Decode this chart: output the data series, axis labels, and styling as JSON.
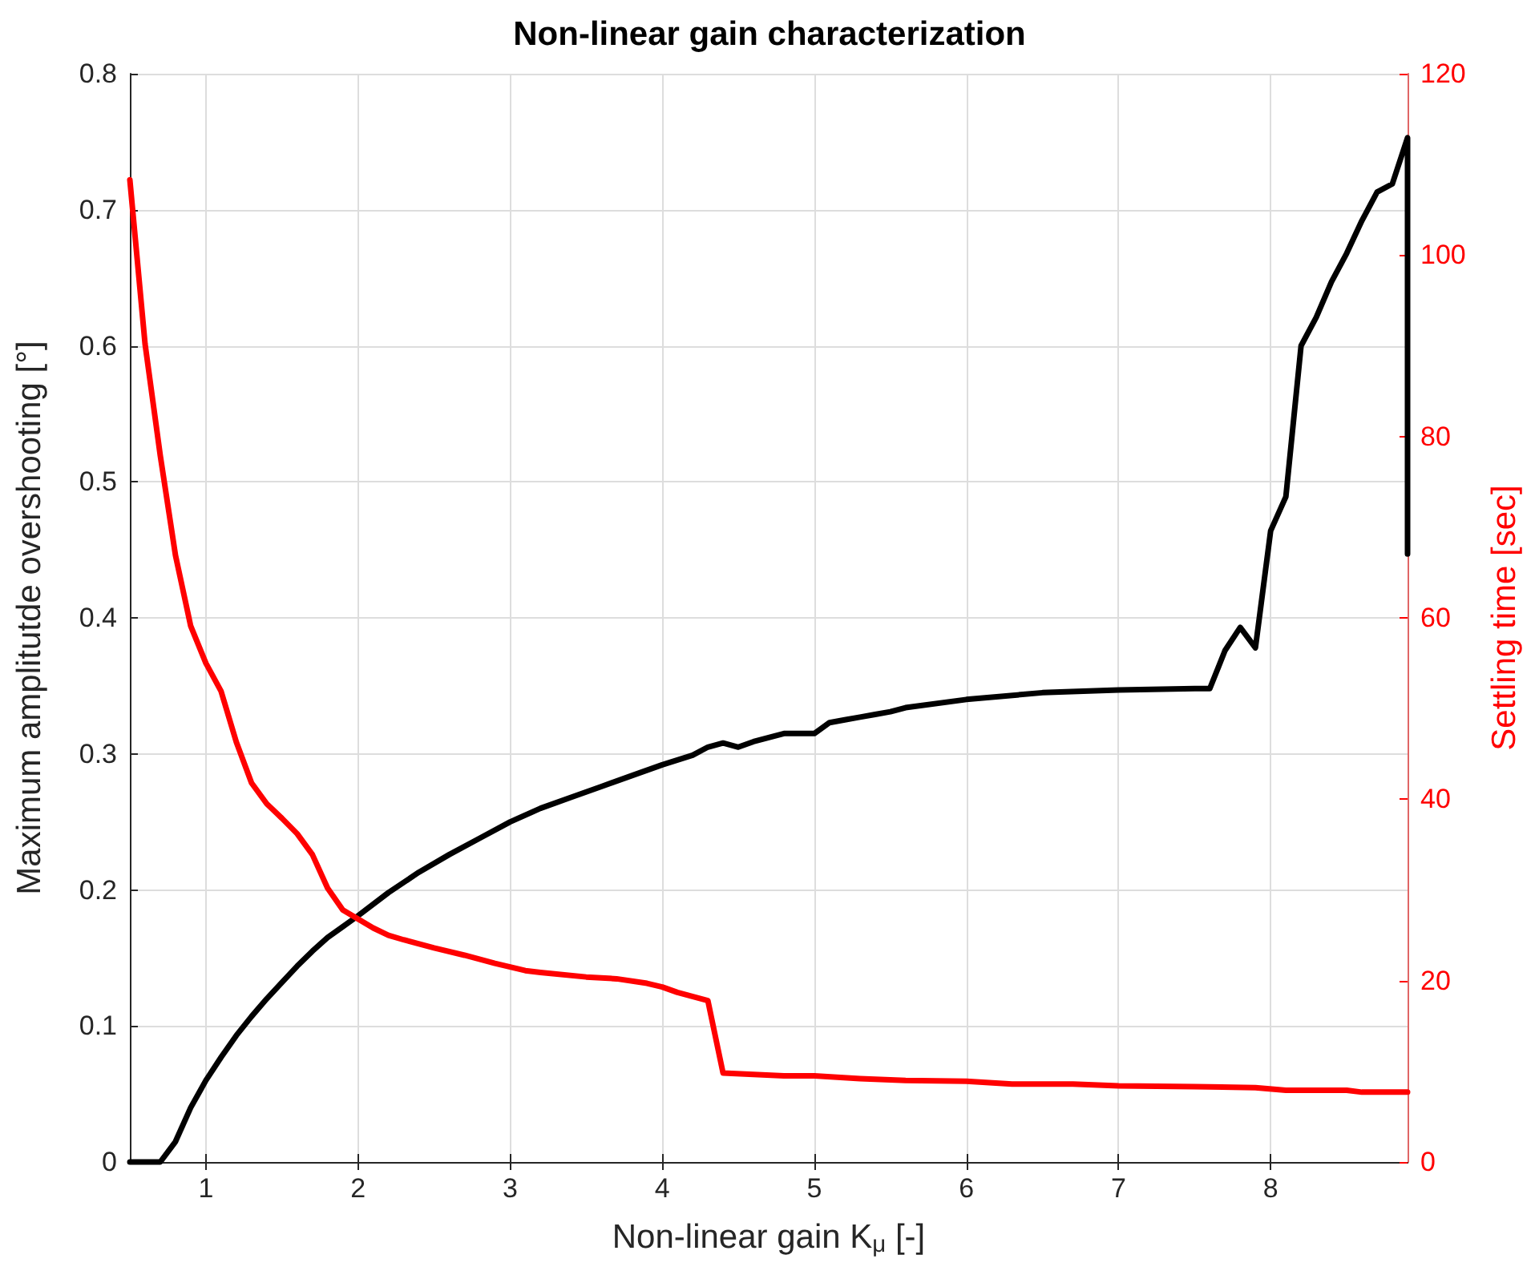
{
  "chart_data": {
    "type": "line",
    "title": "Non-linear gain characterization",
    "xlabel": "Non-linear gain K$_{μ}$ [-]",
    "ylabel": "Maximum amplitutde overshooting [°]",
    "y2label": "Settling time [sec]",
    "xlim": [
      0.5,
      8.9
    ],
    "xticks": [
      1,
      2,
      3,
      4,
      5,
      6,
      7,
      8
    ],
    "ylim": [
      0,
      0.8
    ],
    "yticks": [
      0,
      0.1,
      0.2,
      0.3,
      0.4,
      0.5,
      0.6,
      0.7,
      0.8
    ],
    "y2lim": [
      0,
      120
    ],
    "y2ticks": [
      0,
      20,
      40,
      60,
      80,
      100,
      120
    ],
    "grid": true,
    "marker": "none",
    "line_style": "solid",
    "series": [
      {
        "color": "#000000",
        "x": [
          0.5,
          0.6,
          0.7,
          0.8,
          0.9,
          1.0,
          1.1,
          1.2,
          1.3,
          1.4,
          1.5,
          1.6,
          1.7,
          1.8,
          1.9,
          2.0,
          2.2,
          2.4,
          2.6,
          2.8,
          3.0,
          3.2,
          3.4,
          3.6,
          3.8,
          4.0,
          4.2,
          4.3,
          4.4,
          4.5,
          4.6,
          4.7,
          4.8,
          4.9,
          5.0,
          5.1,
          5.2,
          5.3,
          5.4,
          5.5,
          5.6,
          6.0,
          6.5,
          7.0,
          7.5,
          7.6,
          7.7,
          7.8,
          7.9,
          8.0,
          8.1,
          8.2,
          8.3,
          8.4,
          8.5,
          8.6,
          8.7,
          8.8,
          8.9,
          8.9
        ],
        "values": [
          0,
          0,
          0,
          0.015,
          0.04,
          0.06,
          0.077,
          0.093,
          0.107,
          0.12,
          0.132,
          0.144,
          0.155,
          0.165,
          0.173,
          0.181,
          0.198,
          0.213,
          0.226,
          0.238,
          0.25,
          0.26,
          0.268,
          0.276,
          0.284,
          0.292,
          0.299,
          0.305,
          0.308,
          0.305,
          0.309,
          0.312,
          0.315,
          0.315,
          0.315,
          0.323,
          0.325,
          0.327,
          0.329,
          0.331,
          0.334,
          0.34,
          0.345,
          0.347,
          0.348,
          0.348,
          0.376,
          0.393,
          0.378,
          0.464,
          0.489,
          0.6,
          0.621,
          0.647,
          0.668,
          0.692,
          0.713,
          0.719,
          0.753,
          0.447
        ]
      },
      {
        "color": "#ff0000",
        "axis": "y2",
        "x": [
          0.5,
          0.6,
          0.7,
          0.8,
          0.9,
          1.0,
          1.1,
          1.2,
          1.3,
          1.4,
          1.5,
          1.6,
          1.7,
          1.8,
          1.9,
          2.0,
          2.1,
          2.2,
          2.3,
          2.5,
          2.7,
          2.9,
          3.1,
          3.2,
          3.5,
          3.7,
          3.9,
          4.0,
          4.1,
          4.3,
          4.4,
          4.8,
          5.0,
          5.3,
          5.6,
          6.0,
          6.3,
          6.7,
          7.0,
          7.5,
          7.9,
          8.1,
          8.5,
          8.6,
          8.9
        ],
        "values": [
          108.3,
          90.2,
          77.9,
          66.9,
          59.1,
          55.0,
          51.9,
          46.3,
          41.8,
          39.5,
          37.9,
          36.2,
          33.9,
          30.2,
          27.8,
          26.8,
          25.8,
          25.0,
          24.5,
          23.6,
          22.8,
          21.9,
          21.1,
          20.9,
          20.4,
          20.2,
          19.7,
          19.3,
          18.7,
          17.8,
          9.8,
          9.5,
          9.5,
          9.2,
          9.0,
          8.9,
          8.6,
          8.6,
          8.4,
          8.3,
          8.2,
          7.9,
          7.9,
          7.7,
          7.7
        ]
      }
    ]
  }
}
